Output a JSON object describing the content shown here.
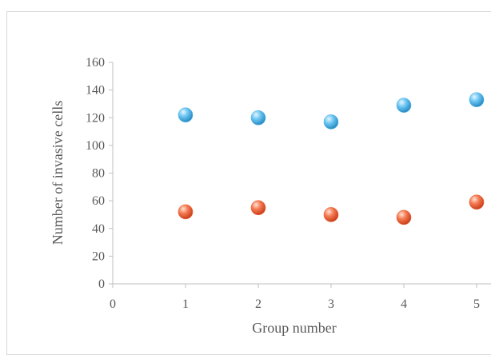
{
  "chart_data": {
    "type": "scatter",
    "title": "",
    "xlabel": "Group number",
    "ylabel": "Number of invasive cells",
    "xlim": [
      0,
      5
    ],
    "ylim": [
      0,
      160
    ],
    "xticks": [
      "0",
      "1",
      "2",
      "3",
      "4",
      "5"
    ],
    "yticks": [
      "0",
      "20",
      "40",
      "60",
      "80",
      "100",
      "120",
      "140",
      "160"
    ],
    "grid": false,
    "legend": "none",
    "series": [
      {
        "color": "#5bb8e8",
        "points": [
          {
            "x": 1,
            "y": 122
          },
          {
            "x": 2,
            "y": 120
          },
          {
            "x": 3,
            "y": 117
          },
          {
            "x": 4,
            "y": 129
          },
          {
            "x": 5,
            "y": 133
          }
        ]
      },
      {
        "color": "#f0663c",
        "points": [
          {
            "x": 1,
            "y": 52
          },
          {
            "x": 2,
            "y": 55
          },
          {
            "x": 3,
            "y": 50
          },
          {
            "x": 4,
            "y": 48
          },
          {
            "x": 5,
            "y": 59
          }
        ]
      }
    ]
  }
}
